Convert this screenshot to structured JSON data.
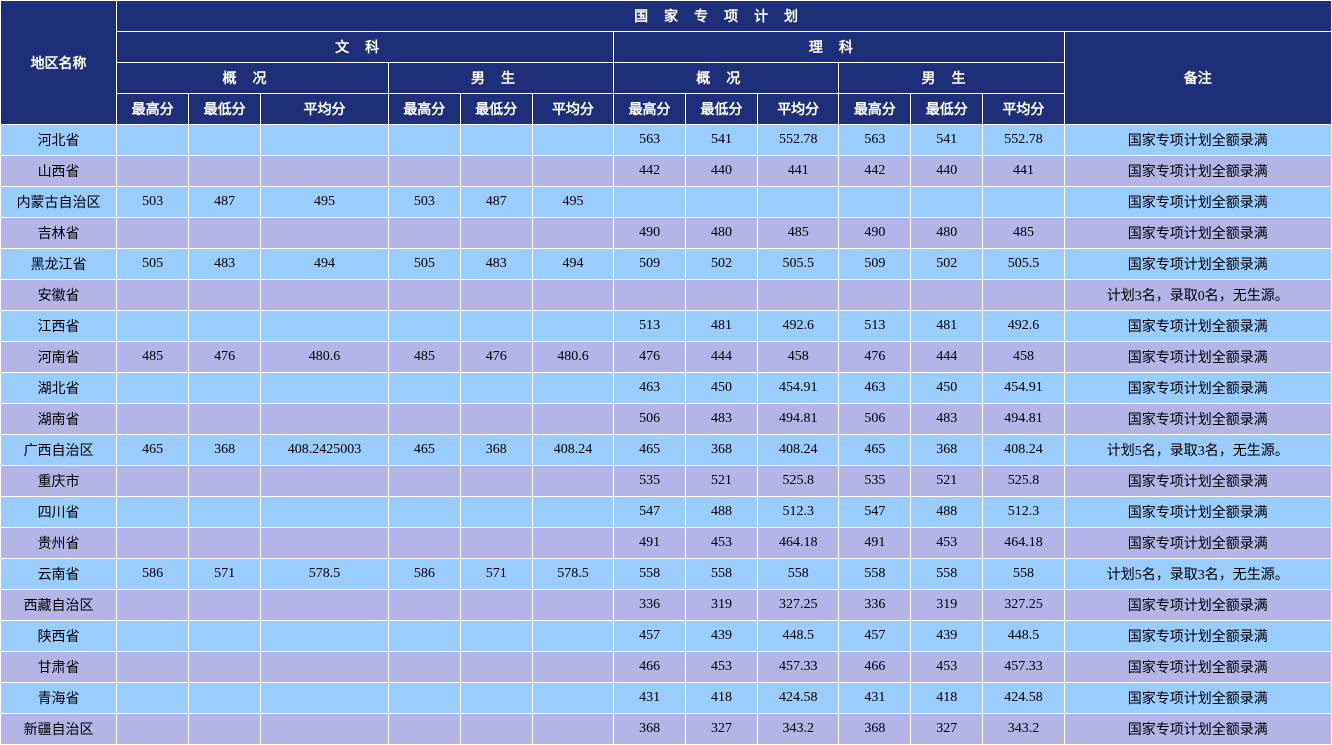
{
  "header": {
    "region": "地区名称",
    "plan": "国家专项计划",
    "liberal": "文科",
    "science": "理科",
    "remark": "备注",
    "overview": "概况",
    "male": "男生",
    "max": "最高分",
    "min": "最低分",
    "avg": "平均分"
  },
  "colors": {
    "header_bg": "#1f2e79",
    "header_fg": "#ffffff",
    "row_blue": "#99ccff",
    "row_purple": "#b4b4e6",
    "border": "#ffffff"
  },
  "rows": [
    {
      "region": "河北省",
      "lib_ov_max": "",
      "lib_ov_min": "",
      "lib_ov_avg": "",
      "lib_m_max": "",
      "lib_m_min": "",
      "lib_m_avg": "",
      "sci_ov_max": "563",
      "sci_ov_min": "541",
      "sci_ov_avg": "552.78",
      "sci_m_max": "563",
      "sci_m_min": "541",
      "sci_m_avg": "552.78",
      "remark": "国家专项计划全额录满"
    },
    {
      "region": "山西省",
      "lib_ov_max": "",
      "lib_ov_min": "",
      "lib_ov_avg": "",
      "lib_m_max": "",
      "lib_m_min": "",
      "lib_m_avg": "",
      "sci_ov_max": "442",
      "sci_ov_min": "440",
      "sci_ov_avg": "441",
      "sci_m_max": "442",
      "sci_m_min": "440",
      "sci_m_avg": "441",
      "remark": "国家专项计划全额录满"
    },
    {
      "region": "内蒙古自治区",
      "lib_ov_max": "503",
      "lib_ov_min": "487",
      "lib_ov_avg": "495",
      "lib_m_max": "503",
      "lib_m_min": "487",
      "lib_m_avg": "495",
      "sci_ov_max": "",
      "sci_ov_min": "",
      "sci_ov_avg": "",
      "sci_m_max": "",
      "sci_m_min": "",
      "sci_m_avg": "",
      "remark": "国家专项计划全额录满"
    },
    {
      "region": "吉林省",
      "lib_ov_max": "",
      "lib_ov_min": "",
      "lib_ov_avg": "",
      "lib_m_max": "",
      "lib_m_min": "",
      "lib_m_avg": "",
      "sci_ov_max": "490",
      "sci_ov_min": "480",
      "sci_ov_avg": "485",
      "sci_m_max": "490",
      "sci_m_min": "480",
      "sci_m_avg": "485",
      "remark": "国家专项计划全额录满"
    },
    {
      "region": "黑龙江省",
      "lib_ov_max": "505",
      "lib_ov_min": "483",
      "lib_ov_avg": "494",
      "lib_m_max": "505",
      "lib_m_min": "483",
      "lib_m_avg": "494",
      "sci_ov_max": "509",
      "sci_ov_min": "502",
      "sci_ov_avg": "505.5",
      "sci_m_max": "509",
      "sci_m_min": "502",
      "sci_m_avg": "505.5",
      "remark": "国家专项计划全额录满"
    },
    {
      "region": "安徽省",
      "lib_ov_max": "",
      "lib_ov_min": "",
      "lib_ov_avg": "",
      "lib_m_max": "",
      "lib_m_min": "",
      "lib_m_avg": "",
      "sci_ov_max": "",
      "sci_ov_min": "",
      "sci_ov_avg": "",
      "sci_m_max": "",
      "sci_m_min": "",
      "sci_m_avg": "",
      "remark": "计划3名，录取0名，无生源。"
    },
    {
      "region": "江西省",
      "lib_ov_max": "",
      "lib_ov_min": "",
      "lib_ov_avg": "",
      "lib_m_max": "",
      "lib_m_min": "",
      "lib_m_avg": "",
      "sci_ov_max": "513",
      "sci_ov_min": "481",
      "sci_ov_avg": "492.6",
      "sci_m_max": "513",
      "sci_m_min": "481",
      "sci_m_avg": "492.6",
      "remark": "国家专项计划全额录满"
    },
    {
      "region": "河南省",
      "lib_ov_max": "485",
      "lib_ov_min": "476",
      "lib_ov_avg": "480.6",
      "lib_m_max": "485",
      "lib_m_min": "476",
      "lib_m_avg": "480.6",
      "sci_ov_max": "476",
      "sci_ov_min": "444",
      "sci_ov_avg": "458",
      "sci_m_max": "476",
      "sci_m_min": "444",
      "sci_m_avg": "458",
      "remark": "国家专项计划全额录满"
    },
    {
      "region": "湖北省",
      "lib_ov_max": "",
      "lib_ov_min": "",
      "lib_ov_avg": "",
      "lib_m_max": "",
      "lib_m_min": "",
      "lib_m_avg": "",
      "sci_ov_max": "463",
      "sci_ov_min": "450",
      "sci_ov_avg": "454.91",
      "sci_m_max": "463",
      "sci_m_min": "450",
      "sci_m_avg": "454.91",
      "remark": "国家专项计划全额录满"
    },
    {
      "region": "湖南省",
      "lib_ov_max": "",
      "lib_ov_min": "",
      "lib_ov_avg": "",
      "lib_m_max": "",
      "lib_m_min": "",
      "lib_m_avg": "",
      "sci_ov_max": "506",
      "sci_ov_min": "483",
      "sci_ov_avg": "494.81",
      "sci_m_max": "506",
      "sci_m_min": "483",
      "sci_m_avg": "494.81",
      "remark": "国家专项计划全额录满"
    },
    {
      "region": "广西自治区",
      "lib_ov_max": "465",
      "lib_ov_min": "368",
      "lib_ov_avg": "408.2425003",
      "lib_m_max": "465",
      "lib_m_min": "368",
      "lib_m_avg": "408.24",
      "sci_ov_max": "465",
      "sci_ov_min": "368",
      "sci_ov_avg": "408.24",
      "sci_m_max": "465",
      "sci_m_min": "368",
      "sci_m_avg": "408.24",
      "remark": "计划5名，录取3名，无生源。"
    },
    {
      "region": "重庆市",
      "lib_ov_max": "",
      "lib_ov_min": "",
      "lib_ov_avg": "",
      "lib_m_max": "",
      "lib_m_min": "",
      "lib_m_avg": "",
      "sci_ov_max": "535",
      "sci_ov_min": "521",
      "sci_ov_avg": "525.8",
      "sci_m_max": "535",
      "sci_m_min": "521",
      "sci_m_avg": "525.8",
      "remark": "国家专项计划全额录满"
    },
    {
      "region": "四川省",
      "lib_ov_max": "",
      "lib_ov_min": "",
      "lib_ov_avg": "",
      "lib_m_max": "",
      "lib_m_min": "",
      "lib_m_avg": "",
      "sci_ov_max": "547",
      "sci_ov_min": "488",
      "sci_ov_avg": "512.3",
      "sci_m_max": "547",
      "sci_m_min": "488",
      "sci_m_avg": "512.3",
      "remark": "国家专项计划全额录满"
    },
    {
      "region": "贵州省",
      "lib_ov_max": "",
      "lib_ov_min": "",
      "lib_ov_avg": "",
      "lib_m_max": "",
      "lib_m_min": "",
      "lib_m_avg": "",
      "sci_ov_max": "491",
      "sci_ov_min": "453",
      "sci_ov_avg": "464.18",
      "sci_m_max": "491",
      "sci_m_min": "453",
      "sci_m_avg": "464.18",
      "remark": "国家专项计划全额录满"
    },
    {
      "region": "云南省",
      "lib_ov_max": "586",
      "lib_ov_min": "571",
      "lib_ov_avg": "578.5",
      "lib_m_max": "586",
      "lib_m_min": "571",
      "lib_m_avg": "578.5",
      "sci_ov_max": "558",
      "sci_ov_min": "558",
      "sci_ov_avg": "558",
      "sci_m_max": "558",
      "sci_m_min": "558",
      "sci_m_avg": "558",
      "remark": "计划5名，录取3名，无生源。"
    },
    {
      "region": "西藏自治区",
      "lib_ov_max": "",
      "lib_ov_min": "",
      "lib_ov_avg": "",
      "lib_m_max": "",
      "lib_m_min": "",
      "lib_m_avg": "",
      "sci_ov_max": "336",
      "sci_ov_min": "319",
      "sci_ov_avg": "327.25",
      "sci_m_max": "336",
      "sci_m_min": "319",
      "sci_m_avg": "327.25",
      "remark": "国家专项计划全额录满"
    },
    {
      "region": "陕西省",
      "lib_ov_max": "",
      "lib_ov_min": "",
      "lib_ov_avg": "",
      "lib_m_max": "",
      "lib_m_min": "",
      "lib_m_avg": "",
      "sci_ov_max": "457",
      "sci_ov_min": "439",
      "sci_ov_avg": "448.5",
      "sci_m_max": "457",
      "sci_m_min": "439",
      "sci_m_avg": "448.5",
      "remark": "国家专项计划全额录满"
    },
    {
      "region": "甘肃省",
      "lib_ov_max": "",
      "lib_ov_min": "",
      "lib_ov_avg": "",
      "lib_m_max": "",
      "lib_m_min": "",
      "lib_m_avg": "",
      "sci_ov_max": "466",
      "sci_ov_min": "453",
      "sci_ov_avg": "457.33",
      "sci_m_max": "466",
      "sci_m_min": "453",
      "sci_m_avg": "457.33",
      "remark": "国家专项计划全额录满"
    },
    {
      "region": "青海省",
      "lib_ov_max": "",
      "lib_ov_min": "",
      "lib_ov_avg": "",
      "lib_m_max": "",
      "lib_m_min": "",
      "lib_m_avg": "",
      "sci_ov_max": "431",
      "sci_ov_min": "418",
      "sci_ov_avg": "424.58",
      "sci_m_max": "431",
      "sci_m_min": "418",
      "sci_m_avg": "424.58",
      "remark": "国家专项计划全额录满"
    },
    {
      "region": "新疆自治区",
      "lib_ov_max": "",
      "lib_ov_min": "",
      "lib_ov_avg": "",
      "lib_m_max": "",
      "lib_m_min": "",
      "lib_m_avg": "",
      "sci_ov_max": "368",
      "sci_ov_min": "327",
      "sci_ov_avg": "343.2",
      "sci_m_max": "368",
      "sci_m_min": "327",
      "sci_m_avg": "343.2",
      "remark": "国家专项计划全额录满"
    }
  ]
}
